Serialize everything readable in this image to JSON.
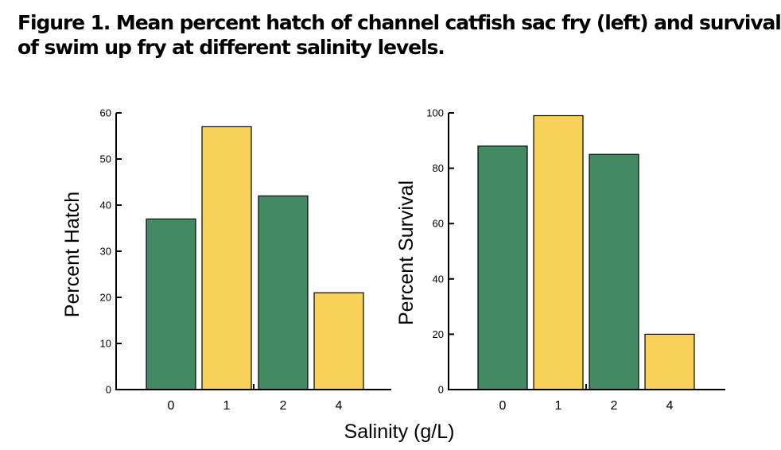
{
  "figure": {
    "title_line1": "Figure 1. Mean percent hatch of channel catfish sac fry (left) and survival",
    "title_line2": "of swim up fry at different salinity levels.",
    "shared_xlabel": "Salinity (g/L)"
  },
  "colors": {
    "green": "#438a62",
    "yellow": "#f8d158"
  },
  "chart_data": [
    {
      "type": "bar",
      "categories": [
        "0",
        "1",
        "2",
        "4"
      ],
      "values": [
        37,
        57,
        42,
        21
      ],
      "bar_colors": [
        "green",
        "yellow",
        "green",
        "yellow"
      ],
      "ylabel": "Percent Hatch",
      "ylim": [
        0,
        60
      ],
      "yticks": [
        0,
        10,
        20,
        30,
        40,
        50,
        60
      ],
      "grid": false
    },
    {
      "type": "bar",
      "categories": [
        "0",
        "1",
        "2",
        "4"
      ],
      "values": [
        88,
        99,
        85,
        20
      ],
      "bar_colors": [
        "green",
        "yellow",
        "green",
        "yellow"
      ],
      "ylabel": "Percent Survival",
      "ylim": [
        0,
        100
      ],
      "yticks": [
        0,
        20,
        40,
        60,
        80,
        100
      ],
      "grid": false
    }
  ]
}
